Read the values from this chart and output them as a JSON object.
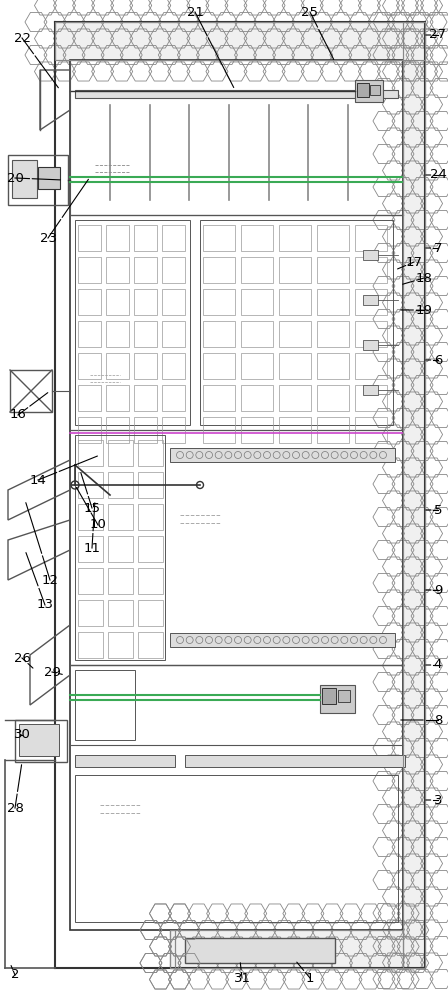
{
  "fig_width": 4.48,
  "fig_height": 10.0,
  "dpi": 100,
  "bg_color": "#ffffff",
  "lc": "#555555",
  "lc2": "#333333",
  "gc": "#3aaa55",
  "pc": "#cc44cc",
  "hc_bg": "#eeeeee",
  "hc_edge": "#999999",
  "gray_fill": "#e8e8e8",
  "dark_fill": "#cccccc"
}
